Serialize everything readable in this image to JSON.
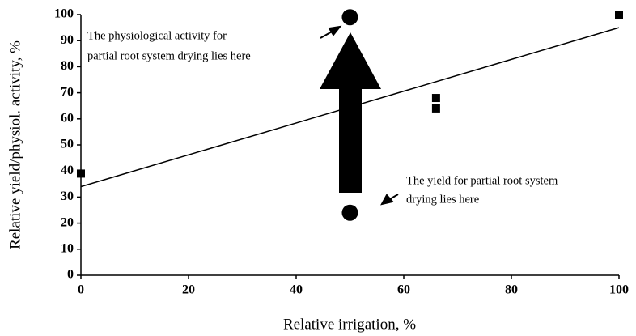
{
  "chart_data": {
    "type": "scatter",
    "xlabel": "Relative irrigation, %",
    "ylabel": "Relative yield/physiol. activity, %",
    "xlim": [
      0,
      100
    ],
    "xticks": [
      0,
      20,
      40,
      60,
      80,
      100
    ],
    "ylim": [
      0,
      100
    ],
    "yticks": [
      0,
      10,
      20,
      30,
      40,
      50,
      60,
      70,
      80,
      90,
      100
    ],
    "squares": {
      "color": "#000000",
      "x": [
        0,
        66,
        66,
        100
      ],
      "values": [
        39,
        68,
        64,
        100
      ]
    },
    "circles": {
      "color": "#000000",
      "x": [
        50,
        50
      ],
      "values": [
        99,
        24
      ]
    },
    "trend_line": {
      "color": "#000000",
      "x": [
        0,
        100
      ],
      "values": [
        34,
        95
      ]
    },
    "annotations": [
      [
        "The physiological activity for",
        "partial root system drying lies here"
      ],
      [
        "The yield for partial root system",
        "drying lies here"
      ]
    ]
  }
}
